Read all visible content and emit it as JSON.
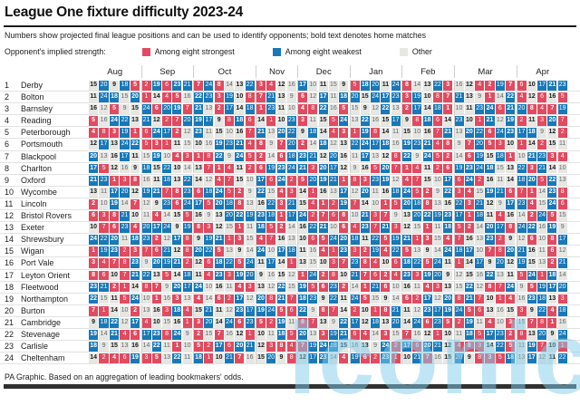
{
  "header": {
    "title": "League One fixture difficulty 2023-24",
    "subtitle": "Numbers show projected final league positions and can be used to identify opponents; bold text denotes home matches",
    "legend_label": "Opponent's implied strength:",
    "legend": [
      {
        "label": "Among eight strongest",
        "color": "#e24a5f"
      },
      {
        "label": "Among eight weakest",
        "color": "#1878b8"
      },
      {
        "label": "Other",
        "color": "#e6e6e3"
      }
    ]
  },
  "footer": {
    "source": "PA Graphic. Based on an aggregation of leading bookmakers' odds."
  },
  "watermark": "iconic",
  "chart_data": {
    "type": "heatmap",
    "title": "League One fixture difficulty 2023-24",
    "legend_note": "bold text denotes home matches",
    "color_rule": {
      "strong_if_value_at_most": 8,
      "weak_if_value_at_least": 17,
      "otherwise": "other"
    },
    "colors": {
      "strong": "#e24a5f",
      "weak": "#1878b8",
      "other": "#e6e6e3"
    },
    "months": [
      {
        "label": "Aug",
        "games": 5
      },
      {
        "label": "Sep",
        "games": 5
      },
      {
        "label": "Oct",
        "games": 6
      },
      {
        "label": "Nov",
        "games": 4
      },
      {
        "label": "Dec",
        "games": 5
      },
      {
        "label": "Jan",
        "games": 5
      },
      {
        "label": "Feb",
        "games": 5
      },
      {
        "label": "Mar",
        "games": 6
      },
      {
        "label": "Apr",
        "games": 5
      }
    ],
    "teams": [
      {
        "rank": 1,
        "name": "Derby",
        "fixtures": [
          15,
          20,
          9,
          18,
          5,
          2,
          19,
          6,
          23,
          21,
          7,
          24,
          8,
          14,
          13,
          22,
          3,
          4,
          12,
          16,
          17,
          10,
          11,
          15,
          9,
          5,
          18,
          20,
          11,
          24,
          8,
          14,
          13,
          22,
          3,
          16,
          12,
          4,
          2,
          19,
          7,
          6,
          10,
          17,
          21,
          23
        ]
      },
      {
        "rank": 2,
        "name": "Bolton",
        "fixtures": [
          11,
          24,
          18,
          15,
          20,
          1,
          14,
          4,
          5,
          16,
          22,
          23,
          3,
          19,
          10,
          8,
          7,
          21,
          13,
          9,
          6,
          12,
          17,
          11,
          18,
          20,
          15,
          24,
          17,
          23,
          3,
          19,
          10,
          8,
          7,
          21,
          13,
          9,
          1,
          14,
          22,
          4,
          12,
          6,
          16,
          5
        ]
      },
      {
        "rank": 3,
        "name": "Barnsley",
        "fixtures": [
          16,
          12,
          5,
          9,
          15,
          24,
          6,
          20,
          19,
          7,
          21,
          13,
          2,
          17,
          14,
          18,
          1,
          23,
          11,
          10,
          4,
          8,
          22,
          16,
          5,
          15,
          9,
          12,
          22,
          13,
          2,
          17,
          14,
          18,
          1,
          10,
          11,
          23,
          24,
          6,
          21,
          20,
          8,
          4,
          7,
          19
        ]
      },
      {
        "rank": 4,
        "name": "Reading",
        "fixtures": [
          5,
          16,
          24,
          22,
          13,
          21,
          12,
          2,
          7,
          20,
          19,
          17,
          9,
          8,
          18,
          6,
          14,
          1,
          10,
          23,
          3,
          11,
          15,
          5,
          24,
          13,
          22,
          16,
          15,
          17,
          9,
          8,
          18,
          6,
          14,
          23,
          10,
          1,
          21,
          12,
          19,
          2,
          11,
          3,
          20,
          7
        ]
      },
      {
        "rank": 5,
        "name": "Peterborough",
        "fixtures": [
          4,
          8,
          3,
          19,
          1,
          6,
          24,
          17,
          2,
          12,
          23,
          11,
          15,
          10,
          16,
          7,
          21,
          13,
          20,
          22,
          9,
          18,
          14,
          4,
          3,
          1,
          19,
          8,
          14,
          11,
          15,
          10,
          16,
          7,
          21,
          13,
          20,
          22,
          6,
          24,
          23,
          17,
          18,
          9,
          12,
          2
        ]
      },
      {
        "rank": 6,
        "name": "Portsmouth",
        "fixtures": [
          12,
          17,
          13,
          24,
          22,
          5,
          3,
          1,
          11,
          15,
          10,
          16,
          19,
          23,
          21,
          4,
          8,
          9,
          7,
          20,
          2,
          14,
          18,
          12,
          13,
          22,
          24,
          17,
          18,
          16,
          19,
          23,
          21,
          4,
          8,
          9,
          7,
          20,
          5,
          3,
          10,
          1,
          14,
          2,
          15,
          11
        ]
      },
      {
        "rank": 7,
        "name": "Blackpool",
        "fixtures": [
          20,
          13,
          16,
          17,
          11,
          15,
          19,
          10,
          4,
          3,
          1,
          8,
          22,
          9,
          24,
          5,
          2,
          14,
          6,
          18,
          23,
          21,
          12,
          20,
          16,
          11,
          17,
          13,
          12,
          8,
          22,
          9,
          24,
          5,
          2,
          14,
          6,
          19,
          15,
          18,
          1,
          10,
          21,
          23,
          3,
          4
        ]
      },
      {
        "rank": 8,
        "name": "Charlton",
        "fixtures": [
          17,
          5,
          12,
          16,
          9,
          18,
          15,
          22,
          10,
          14,
          13,
          7,
          1,
          4,
          11,
          2,
          6,
          19,
          23,
          24,
          21,
          3,
          20,
          17,
          12,
          9,
          16,
          5,
          20,
          7,
          1,
          4,
          11,
          2,
          6,
          19,
          23,
          24,
          18,
          15,
          13,
          22,
          3,
          21,
          14,
          10
        ]
      },
      {
        "rank": 9,
        "name": "Oxford",
        "fixtures": [
          21,
          23,
          1,
          3,
          8,
          16,
          11,
          18,
          13,
          22,
          14,
          12,
          4,
          7,
          15,
          10,
          17,
          6,
          24,
          2,
          5,
          20,
          19,
          21,
          1,
          8,
          3,
          23,
          19,
          12,
          4,
          7,
          15,
          10,
          17,
          6,
          24,
          2,
          16,
          11,
          14,
          18,
          20,
          5,
          22,
          13
        ]
      },
      {
        "rank": 10,
        "name": "Wycombe",
        "fixtures": [
          13,
          11,
          17,
          20,
          12,
          19,
          21,
          7,
          8,
          23,
          6,
          18,
          24,
          5,
          2,
          9,
          22,
          15,
          4,
          3,
          14,
          1,
          16,
          13,
          17,
          12,
          20,
          11,
          16,
          18,
          24,
          5,
          2,
          9,
          22,
          3,
          4,
          15,
          19,
          21,
          6,
          7,
          1,
          14,
          23,
          8
        ]
      },
      {
        "rank": 11,
        "name": "Lincoln",
        "fixtures": [
          2,
          10,
          19,
          14,
          7,
          12,
          9,
          23,
          6,
          24,
          17,
          5,
          20,
          18,
          8,
          13,
          16,
          22,
          3,
          21,
          15,
          4,
          1,
          2,
          19,
          7,
          14,
          10,
          1,
          5,
          20,
          18,
          8,
          13,
          16,
          22,
          3,
          21,
          12,
          9,
          17,
          23,
          4,
          15,
          24,
          6
        ]
      },
      {
        "rank": 12,
        "name": "Bristol Rovers",
        "fixtures": [
          6,
          3,
          8,
          21,
          10,
          11,
          4,
          14,
          15,
          5,
          16,
          9,
          13,
          20,
          22,
          19,
          23,
          18,
          1,
          17,
          24,
          2,
          7,
          6,
          8,
          10,
          21,
          3,
          7,
          9,
          13,
          20,
          22,
          19,
          23,
          17,
          1,
          18,
          11,
          4,
          16,
          14,
          2,
          24,
          5,
          15
        ]
      },
      {
        "rank": 13,
        "name": "Exeter",
        "fixtures": [
          10,
          7,
          6,
          23,
          4,
          20,
          17,
          24,
          9,
          19,
          8,
          3,
          12,
          15,
          1,
          11,
          18,
          5,
          2,
          14,
          16,
          22,
          21,
          10,
          6,
          4,
          23,
          7,
          21,
          3,
          12,
          15,
          1,
          11,
          18,
          5,
          2,
          14,
          20,
          17,
          8,
          24,
          22,
          16,
          19,
          9
        ]
      },
      {
        "rank": 14,
        "name": "Shrewsbury",
        "fixtures": [
          24,
          22,
          20,
          11,
          18,
          23,
          2,
          12,
          17,
          8,
          9,
          19,
          21,
          1,
          3,
          15,
          4,
          7,
          16,
          13,
          10,
          6,
          5,
          24,
          20,
          18,
          11,
          22,
          5,
          19,
          21,
          1,
          3,
          15,
          4,
          7,
          16,
          13,
          23,
          2,
          9,
          12,
          6,
          10,
          8,
          17
        ]
      },
      {
        "rank": 15,
        "name": "Wigan",
        "fixtures": [
          1,
          19,
          23,
          2,
          3,
          7,
          6,
          21,
          12,
          8,
          20,
          22,
          5,
          13,
          9,
          14,
          24,
          10,
          17,
          18,
          11,
          16,
          4,
          1,
          23,
          3,
          2,
          19,
          4,
          22,
          5,
          13,
          9,
          14,
          24,
          18,
          17,
          10,
          7,
          8,
          20,
          21,
          16,
          11,
          6,
          12
        ]
      },
      {
        "rank": 16,
        "name": "Port Vale",
        "fixtures": [
          3,
          4,
          7,
          8,
          23,
          9,
          20,
          19,
          21,
          2,
          12,
          6,
          18,
          22,
          5,
          24,
          11,
          17,
          14,
          1,
          13,
          15,
          10,
          3,
          7,
          23,
          8,
          4,
          10,
          6,
          18,
          22,
          5,
          24,
          11,
          1,
          14,
          17,
          9,
          20,
          12,
          19,
          15,
          13,
          2,
          21
        ]
      },
      {
        "rank": 17,
        "name": "Leyton Orient",
        "fixtures": [
          8,
          6,
          10,
          7,
          21,
          22,
          13,
          5,
          14,
          18,
          11,
          4,
          23,
          3,
          19,
          20,
          9,
          16,
          15,
          12,
          1,
          24,
          2,
          8,
          10,
          21,
          7,
          6,
          2,
          4,
          23,
          3,
          19,
          20,
          9,
          12,
          15,
          16,
          22,
          13,
          11,
          5,
          24,
          1,
          18,
          14
        ]
      },
      {
        "rank": 18,
        "name": "Fleetwood",
        "fixtures": [
          23,
          21,
          2,
          1,
          14,
          8,
          7,
          9,
          20,
          17,
          24,
          10,
          16,
          11,
          4,
          3,
          13,
          12,
          22,
          15,
          19,
          5,
          6,
          23,
          2,
          14,
          1,
          21,
          6,
          10,
          16,
          11,
          4,
          3,
          13,
          15,
          22,
          12,
          8,
          7,
          24,
          9,
          5,
          19,
          17,
          20
        ]
      },
      {
        "rank": 19,
        "name": "Northampton",
        "fixtures": [
          22,
          15,
          11,
          5,
          24,
          10,
          1,
          16,
          3,
          13,
          4,
          14,
          6,
          2,
          17,
          12,
          20,
          8,
          21,
          7,
          18,
          23,
          9,
          22,
          11,
          24,
          5,
          15,
          9,
          14,
          6,
          2,
          17,
          12,
          20,
          8,
          21,
          7,
          10,
          1,
          4,
          16,
          23,
          18,
          13,
          3
        ]
      },
      {
        "rank": 20,
        "name": "Burton",
        "fixtures": [
          7,
          1,
          14,
          10,
          2,
          13,
          16,
          3,
          18,
          4,
          15,
          21,
          11,
          12,
          23,
          17,
          19,
          24,
          5,
          6,
          22,
          9,
          8,
          7,
          14,
          2,
          10,
          1,
          8,
          21,
          11,
          12,
          23,
          17,
          19,
          24,
          5,
          6,
          13,
          16,
          15,
          3,
          9,
          22,
          4,
          18
        ]
      },
      {
        "rank": 21,
        "name": "Cambridge",
        "fixtures": [
          9,
          18,
          22,
          12,
          17,
          4,
          10,
          15,
          16,
          1,
          3,
          20,
          14,
          24,
          6,
          23,
          5,
          2,
          19,
          11,
          8,
          7,
          13,
          9,
          22,
          17,
          12,
          18,
          13,
          20,
          14,
          24,
          6,
          23,
          5,
          2,
          19,
          11,
          4,
          10,
          3,
          15,
          7,
          8,
          1,
          16
        ]
      },
      {
        "rank": 22,
        "name": "Stevenage",
        "fixtures": [
          19,
          14,
          21,
          4,
          6,
          17,
          23,
          8,
          24,
          9,
          2,
          15,
          7,
          16,
          12,
          1,
          10,
          11,
          18,
          5,
          20,
          13,
          3,
          19,
          21,
          6,
          4,
          14,
          3,
          15,
          7,
          16,
          12,
          1,
          10,
          11,
          18,
          5,
          17,
          23,
          2,
          8,
          13,
          20,
          9,
          24
        ]
      },
      {
        "rank": 23,
        "name": "Carlisle",
        "fixtures": [
          18,
          9,
          15,
          13,
          16,
          14,
          22,
          11,
          1,
          10,
          5,
          2,
          17,
          6,
          20,
          21,
          12,
          3,
          8,
          4,
          7,
          19,
          24,
          18,
          15,
          16,
          13,
          9,
          24,
          2,
          17,
          6,
          20,
          21,
          12,
          4,
          8,
          3,
          14,
          22,
          5,
          11,
          19,
          7,
          10,
          1
        ]
      },
      {
        "rank": 24,
        "name": "Cheltenham",
        "fixtures": [
          14,
          2,
          4,
          6,
          19,
          3,
          5,
          13,
          22,
          11,
          18,
          1,
          10,
          21,
          7,
          16,
          15,
          20,
          9,
          8,
          12,
          17,
          23,
          14,
          4,
          19,
          6,
          2,
          23,
          1,
          10,
          21,
          7,
          16,
          15,
          20,
          9,
          8,
          3,
          5,
          18,
          13,
          17,
          12,
          11,
          22
        ]
      }
    ]
  }
}
